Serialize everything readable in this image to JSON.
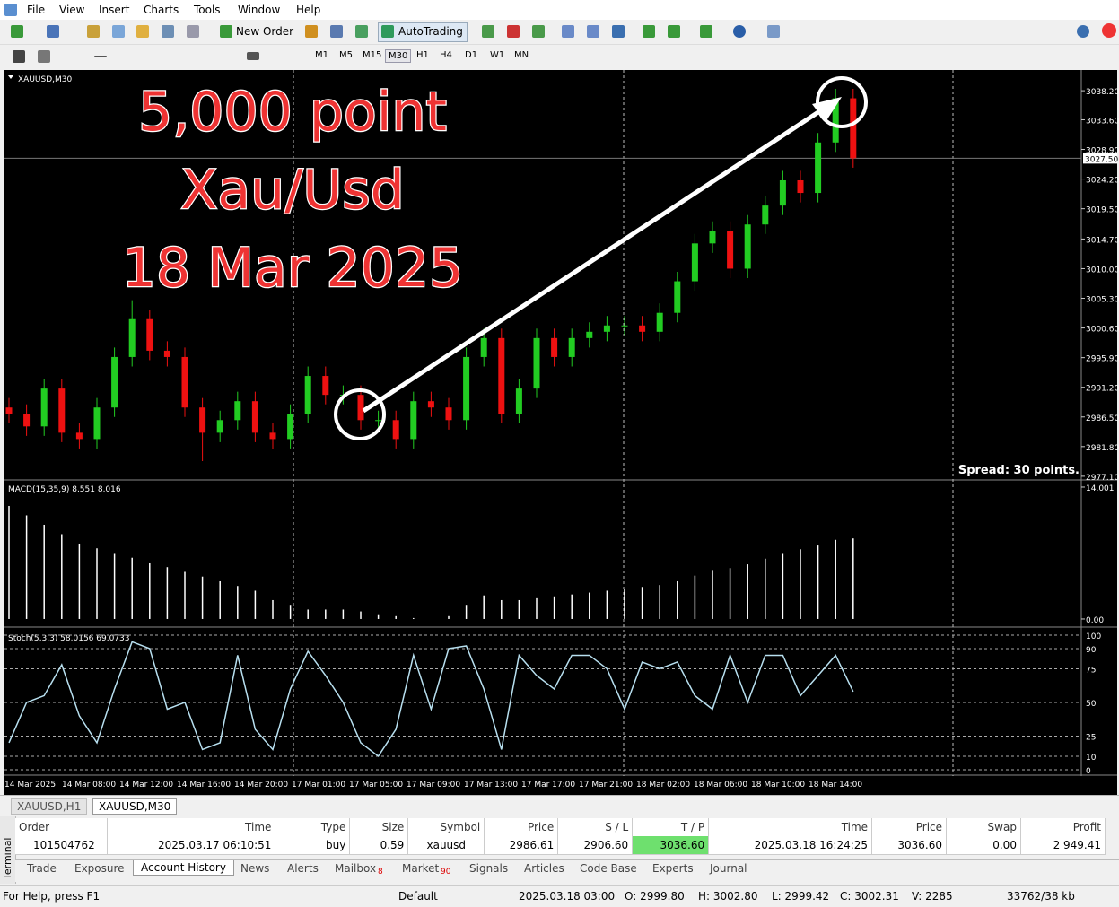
{
  "menu": [
    "File",
    "View",
    "Insert",
    "Charts",
    "Tools",
    "Window",
    "Help"
  ],
  "toolbar": {
    "new_order": "New Order",
    "auto_trading": "AutoTrading"
  },
  "timeframes": [
    "M1",
    "M5",
    "M15",
    "M30",
    "H1",
    "H4",
    "D1",
    "W1",
    "MN"
  ],
  "chart": {
    "symbol": "XAUUSD,M30",
    "annotations": [
      "5,000 point",
      "Xau/Usd",
      "18 Mar 2025"
    ],
    "spread": "Spread: 30 points.",
    "ylim": [
      2976.8,
      3041.2
    ],
    "yticks": [
      {
        "value": 3038.2,
        "label": "3038.20"
      },
      {
        "value": 3033.6,
        "label": "3033.60"
      },
      {
        "value": 3028.9,
        "label": "3028.90"
      },
      {
        "value": 3024.2,
        "label": "3024.20"
      },
      {
        "value": 3019.5,
        "label": "3019.50"
      },
      {
        "value": 3014.7,
        "label": "3014.70"
      },
      {
        "value": 3010,
        "label": "3010.00"
      },
      {
        "value": 3005.3,
        "label": "3005.30"
      },
      {
        "value": 3000.6,
        "label": "3000.60"
      },
      {
        "value": 2995.9,
        "label": "2995.90"
      },
      {
        "value": 2991.2,
        "label": "2991.20"
      },
      {
        "value": 2986.5,
        "label": "2986.50"
      },
      {
        "value": 2981.8,
        "label": "2981.80"
      },
      {
        "value": 2977.1,
        "label": "2977.10"
      }
    ],
    "current": {
      "value": 3027.5,
      "label": "3027.50"
    },
    "open": [
      2988,
      2987,
      2985,
      2991,
      2984,
      2983,
      2988,
      2996,
      3002,
      2997,
      2996,
      2988,
      2984,
      2986,
      2989,
      2984,
      2983,
      2987,
      2993,
      2990,
      2990,
      2986,
      2986,
      2983,
      2989,
      2988,
      2986,
      2996,
      2999,
      2987,
      2991,
      2999,
      2996,
      2999,
      3000,
      3001,
      3001,
      3000,
      3003,
      3008,
      3014,
      3016,
      3010,
      3017,
      3020,
      3024,
      3022,
      3030,
      3037
    ],
    "high": [
      2989.5,
      2988.5,
      2992.5,
      2992.5,
      2985.5,
      2989.5,
      2997.5,
      3005,
      3003.5,
      2998.5,
      2997.5,
      2989.5,
      2987.5,
      2990.5,
      2990.5,
      2985.5,
      2988.5,
      2994.5,
      2994.5,
      2991.5,
      2991.5,
      2987.5,
      2987.5,
      2990.5,
      2990.5,
      2989.5,
      2997.5,
      3000.5,
      3000.5,
      2992.5,
      3000.5,
      3000.5,
      3000.5,
      3001.5,
      3002.5,
      3002.5,
      3002.5,
      3004.5,
      3009.5,
      3015.5,
      3017.5,
      3017.5,
      3018.5,
      3021.5,
      3025.5,
      3025.5,
      3031.5,
      3038.5,
      3038.5
    ],
    "low": [
      2985.5,
      2983.5,
      2983.5,
      2982.5,
      2981.5,
      2981.5,
      2986.5,
      2994.5,
      2995.5,
      2994.5,
      2986.5,
      2979.5,
      2982.5,
      2984.5,
      2982.5,
      2981.5,
      2981.5,
      2985.5,
      2988.5,
      2988.5,
      2984.5,
      2984.5,
      2981.5,
      2981.5,
      2986.5,
      2984.5,
      2984.5,
      2994.5,
      2985.5,
      2985.5,
      2989.5,
      2994.5,
      2994.5,
      2997.5,
      2998.5,
      2999.5,
      2998.5,
      2998.5,
      3001.5,
      3006.5,
      3012.5,
      3008.5,
      3008.5,
      3015.5,
      3018.5,
      3020.5,
      3020.5,
      3028.5,
      3026
    ],
    "close": [
      2987,
      2985,
      2991,
      2984,
      2983,
      2988,
      2996,
      3002,
      2997,
      2996,
      2988,
      2984,
      2986,
      2989,
      2984,
      2983,
      2987,
      2993,
      2990,
      2990,
      2986,
      2986,
      2983,
      2989,
      2988,
      2986,
      2996,
      2999,
      2987,
      2991,
      2999,
      2996,
      2999,
      3000,
      3001,
      3001,
      3000,
      3003,
      3008,
      3014,
      3016,
      3010,
      3017,
      3020,
      3024,
      3022,
      3030,
      3037,
      3027.5
    ],
    "time_labels": [
      "14 Mar 2025",
      "14 Mar 08:00",
      "14 Mar 12:00",
      "14 Mar 16:00",
      "14 Mar 20:00",
      "17 Mar 01:00",
      "17 Mar 05:00",
      "17 Mar 09:00",
      "17 Mar 13:00",
      "17 Mar 17:00",
      "17 Mar 21:00",
      "18 Mar 02:00",
      "18 Mar 06:00",
      "18 Mar 10:00",
      "18 Mar 14:00"
    ],
    "macd": {
      "label": "MACD(15,35,9) 8.551 8.016",
      "ylim": [
        -0.67,
        14.57
      ],
      "yticks": [
        14.001,
        {
          "value": 0,
          "label": "0.00"
        }
      ],
      "values": [
        12,
        11,
        10,
        9,
        8,
        7.5,
        7,
        6.5,
        6,
        5.5,
        5,
        4.5,
        4,
        3.5,
        3,
        2,
        1.5,
        1,
        1,
        1,
        0.8,
        0.5,
        0.3,
        0.1,
        0,
        0.3,
        1.5,
        2.5,
        2,
        2,
        2.2,
        2.4,
        2.6,
        2.8,
        3,
        3.2,
        3.4,
        3.6,
        4,
        4.6,
        5.2,
        5.4,
        5.8,
        6.4,
        7,
        7.4,
        7.8,
        8.4,
        8.551
      ]
    },
    "stoch": {
      "label": "Stoch(5,3,3) 58.0156 69.0733",
      "ylim": [
        -2.7,
        103.3
      ],
      "yticks": [
        100,
        90,
        75,
        50,
        25,
        10,
        0
      ],
      "values": [
        20,
        50,
        55,
        78,
        40,
        20,
        60,
        95,
        90,
        45,
        50,
        15,
        20,
        85,
        30,
        15,
        60,
        88,
        70,
        50,
        20,
        10,
        30,
        85,
        45,
        90,
        92,
        60,
        15,
        85,
        70,
        60,
        85,
        85,
        75,
        45,
        80,
        75,
        80,
        55,
        45,
        85,
        50,
        85,
        85,
        55,
        70,
        85,
        58.0156
      ]
    }
  },
  "chart_tabs": [
    "XAUUSD,H1",
    "XAUUSD,M30"
  ],
  "terminal": {
    "title": "Terminal",
    "headers": [
      "Order",
      "Time",
      "Type",
      "Size",
      "Symbol",
      "Price",
      "S / L",
      "T / P",
      "Time",
      "Price",
      "Swap",
      "Profit"
    ],
    "row": [
      "101504762",
      "2025.03.17 06:10:51",
      "buy",
      "0.59",
      "xauusd",
      "2986.61",
      "2906.60",
      "3036.60",
      "2025.03.18 16:24:25",
      "3036.60",
      "0.00",
      "2 949.41"
    ],
    "tabs": [
      "Trade",
      "Exposure",
      "Account History",
      "News",
      "Alerts",
      "Mailbox",
      "Market",
      "Signals",
      "Articles",
      "Code Base",
      "Experts",
      "Journal"
    ],
    "badges": {
      "mailbox": "8",
      "market": "90"
    }
  },
  "status": [
    "For Help, press F1",
    "Default",
    "2025.03.18 03:00",
    "O: 2999.80",
    "H: 3002.80",
    "L: 2999.42",
    "C: 3002.31",
    "V: 2285",
    "33762/38 kb"
  ]
}
